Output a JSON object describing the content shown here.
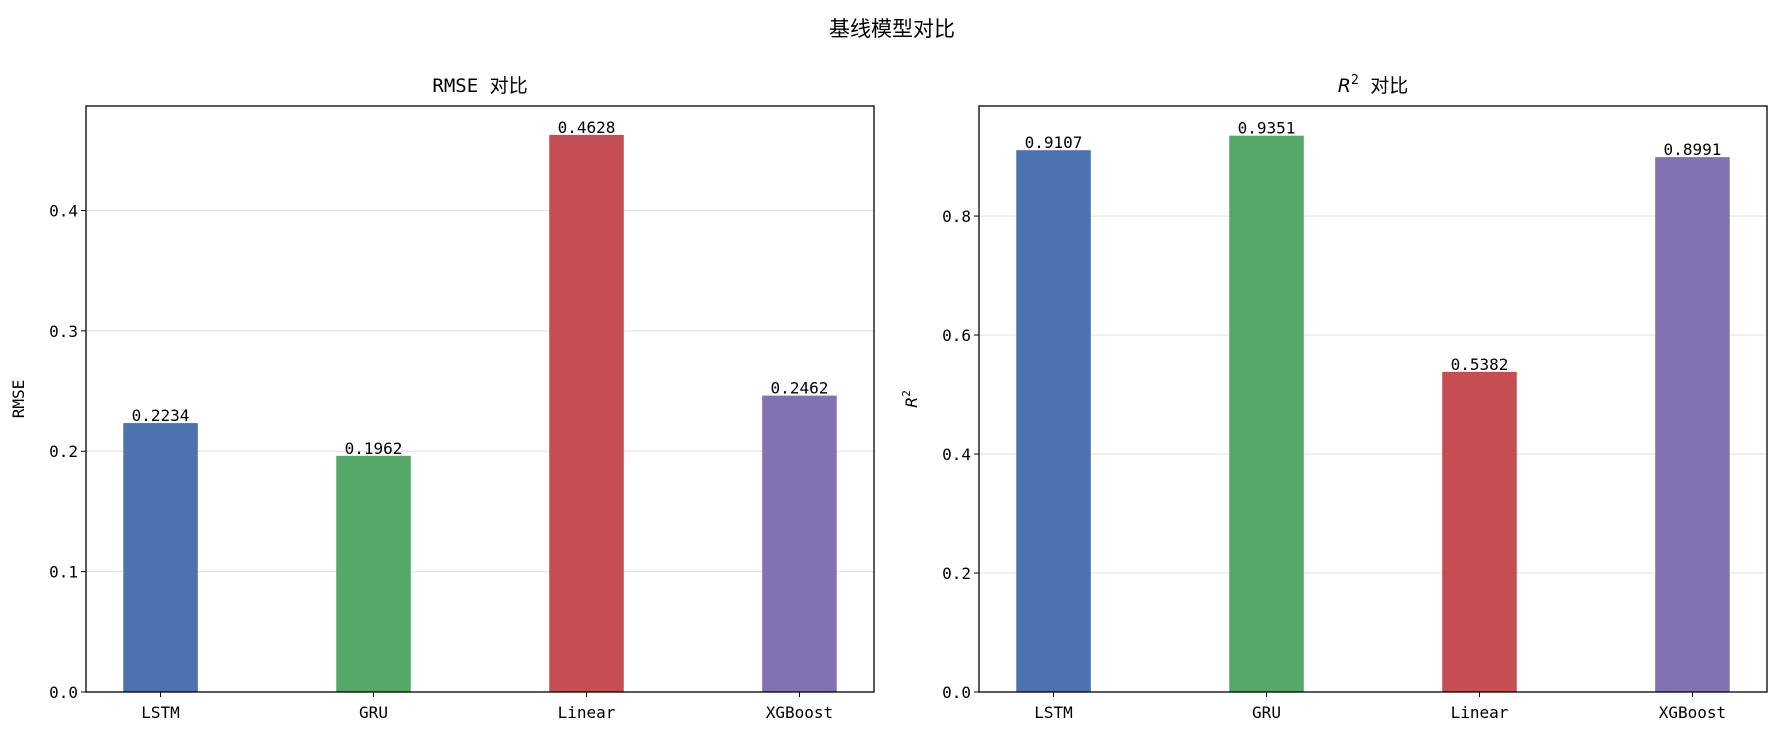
{
  "title": "基线模型对比",
  "chart_data": [
    {
      "type": "bar",
      "title": "RMSE 对比",
      "xlabel": "",
      "ylabel": "RMSE",
      "categories": [
        "LSTM",
        "GRU",
        "Linear",
        "XGBoost"
      ],
      "values": [
        0.2234,
        0.1962,
        0.4628,
        0.2462
      ],
      "value_labels": [
        "0.2234",
        "0.1962",
        "0.4628",
        "0.2462"
      ],
      "colors": [
        "#4c72b0",
        "#55a868",
        "#c44e52",
        "#8172b2"
      ],
      "ylim": [
        0,
        0.4868
      ],
      "yticks": [
        0.0,
        0.1,
        0.2,
        0.3,
        0.4
      ],
      "ytick_labels": [
        "0.0",
        "0.1",
        "0.2",
        "0.3",
        "0.4"
      ],
      "grid": "y"
    },
    {
      "type": "bar",
      "title": "R² 对比",
      "title_main": "R",
      "title_sup": "2",
      "title_rest": " 对比",
      "xlabel": "",
      "ylabel": "R²",
      "ylabel_main": "R",
      "ylabel_sup": "2",
      "categories": [
        "LSTM",
        "GRU",
        "Linear",
        "XGBoost"
      ],
      "values": [
        0.9107,
        0.9351,
        0.5382,
        0.8991
      ],
      "value_labels": [
        "0.9107",
        "0.9351",
        "0.5382",
        "0.8991"
      ],
      "colors": [
        "#4c72b0",
        "#55a868",
        "#c44e52",
        "#8172b2"
      ],
      "ylim": [
        0,
        0.985
      ],
      "yticks": [
        0.0,
        0.2,
        0.4,
        0.6,
        0.8
      ],
      "ytick_labels": [
        "0.0",
        "0.2",
        "0.4",
        "0.6",
        "0.8"
      ],
      "grid": "y"
    }
  ]
}
